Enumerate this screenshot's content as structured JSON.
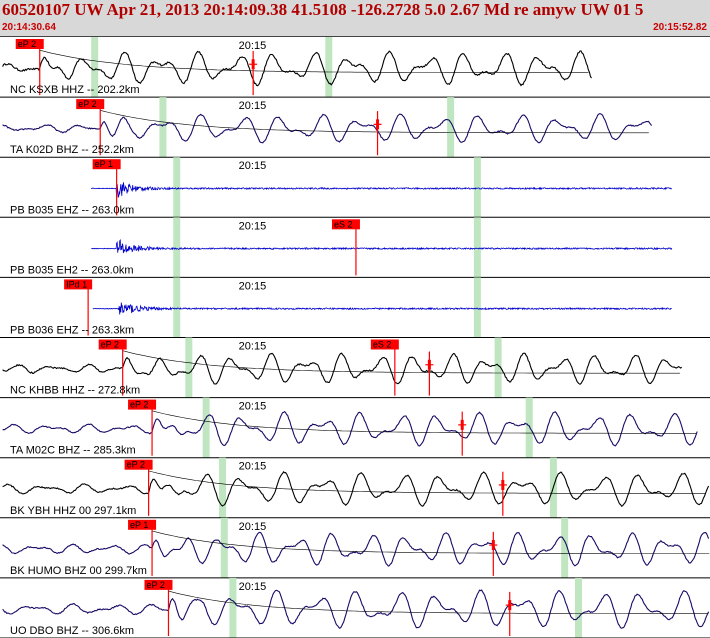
{
  "header": {
    "title": "60520107 UW Apr 21, 2013 20:14:09.38   41.5108 -126.2728  5.0 2.67 Md re amyw UW 01    5",
    "start_time": "20:14:30.64",
    "end_time": "20:15:52.82"
  },
  "chart_data": {
    "type": "line",
    "title": "60520107 UW Apr 21, 2013 20:14:09.38   41.5108 -126.2728  5.0 2.67 Md re amyw UW 01    5",
    "x_unit": "seconds",
    "time_window": {
      "start": "20:14:30.64",
      "end": "20:15:52.82"
    },
    "x_range": [
      0,
      82.18
    ],
    "tick_label": "20:15",
    "tick_time": 29.36,
    "grid": false,
    "traces": [
      {
        "label": "NC KSXB HHZ -- 202.2km",
        "color": "#000000",
        "end_time": 68.5,
        "onset": 4.6,
        "noise": 0.15,
        "amp": 0.35,
        "period": 4.4,
        "picks": [
          {
            "label": "eP 2",
            "time": 4.6,
            "color": "#ff0000"
          },
          {
            "label": "",
            "time": 29.3,
            "color": "#ff0000"
          }
        ],
        "windows": [
          10.9,
          38.0
        ]
      },
      {
        "label": "TA K02D BHZ -- 252.2km",
        "color": "#1a0a66",
        "end_time": 75.5,
        "onset": 11.6,
        "noise": 0.1,
        "amp": 0.3,
        "period": 4.6,
        "picks": [
          {
            "label": "eP 2",
            "time": 11.6,
            "color": "#ff0000"
          },
          {
            "label": "",
            "time": 43.7,
            "color": "#ff0000"
          }
        ],
        "windows": [
          18.8,
          52.1
        ]
      },
      {
        "label": "PB B035 EHZ -- 263.0km",
        "color": "#0000cc",
        "end_time": 77.8,
        "onset": 13.5,
        "noise": 0.04,
        "amp": 0.08,
        "period": 0.6,
        "hf": true,
        "picks": [
          {
            "label": "eP 1",
            "time": 13.5,
            "color": "#ff0000"
          }
        ],
        "windows": [
          20.4,
          55.2
        ]
      },
      {
        "label": "PB B035 EH2 -- 263.0km",
        "color": "#0000cc",
        "end_time": 77.8,
        "onset": 13.5,
        "noise": 0.04,
        "amp": 0.08,
        "period": 0.6,
        "hf": true,
        "picks": [
          {
            "label": "eS 2",
            "time": 41.2,
            "color": "#ff0000"
          }
        ],
        "windows": [
          20.4,
          55.2
        ]
      },
      {
        "label": "PB B036 EHZ -- 263.3km",
        "color": "#0000cc",
        "end_time": 77.8,
        "onset": 13.7,
        "noise": 0.04,
        "amp": 0.08,
        "period": 0.6,
        "hf": true,
        "picks": [
          {
            "label": "IPd 1",
            "time": 10.2,
            "color": "#ff0000"
          }
        ],
        "windows": [
          20.4,
          55.2
        ]
      },
      {
        "label": "NC KHBB HHZ -- 272.8km",
        "color": "#000000",
        "end_time": 79.0,
        "onset": 14.2,
        "noise": 0.12,
        "amp": 0.32,
        "period": 4.2,
        "picks": [
          {
            "label": "eP 2",
            "time": 14.2,
            "color": "#ff0000"
          },
          {
            "label": "eS 2",
            "time": 45.7,
            "color": "#ff0000"
          },
          {
            "label": "",
            "time": 49.7,
            "color": "#ff0000"
          }
        ],
        "windows": [
          21.8,
          57.6
        ]
      },
      {
        "label": "TA M02C BHZ -- 285.3km",
        "color": "#1a0a66",
        "end_time": 80.8,
        "onset": 17.6,
        "noise": 0.1,
        "amp": 0.35,
        "period": 4.5,
        "picks": [
          {
            "label": "eP 2",
            "time": 17.6,
            "color": "#ff0000"
          },
          {
            "label": "",
            "time": 53.5,
            "color": "#ff0000"
          }
        ],
        "windows": [
          23.8,
          61.2
        ]
      },
      {
        "label": "BK YBH HHZ 00 297.1km",
        "color": "#000000",
        "end_time": 82.1,
        "onset": 17.2,
        "noise": 0.1,
        "amp": 0.35,
        "period": 4.6,
        "picks": [
          {
            "label": "eP 2",
            "time": 17.2,
            "color": "#ff0000"
          },
          {
            "label": "",
            "time": 58.2,
            "color": "#ff0000"
          }
        ],
        "windows": [
          25.7,
          64.0
        ]
      },
      {
        "label": "BK HUMO BHZ 00 299.7km",
        "color": "#1a0a66",
        "end_time": 82.1,
        "onset": 17.6,
        "noise": 0.1,
        "amp": 0.35,
        "period": 4.3,
        "picks": [
          {
            "label": "eP 1",
            "time": 17.6,
            "color": "#ff0000"
          },
          {
            "label": "",
            "time": 57.1,
            "color": "#ff0000"
          }
        ],
        "windows": [
          25.9,
          65.3
        ]
      },
      {
        "label": "UO DBO BHZ -- 306.6km",
        "color": "#1a0a66",
        "end_time": 82.1,
        "onset": 19.5,
        "noise": 0.1,
        "amp": 0.4,
        "period": 4.7,
        "picks": [
          {
            "label": "eP 2",
            "time": 19.5,
            "color": "#ff0000"
          },
          {
            "label": "",
            "time": 59.0,
            "color": "#ff0000"
          }
        ],
        "windows": [
          26.9,
          66.9
        ]
      }
    ]
  }
}
